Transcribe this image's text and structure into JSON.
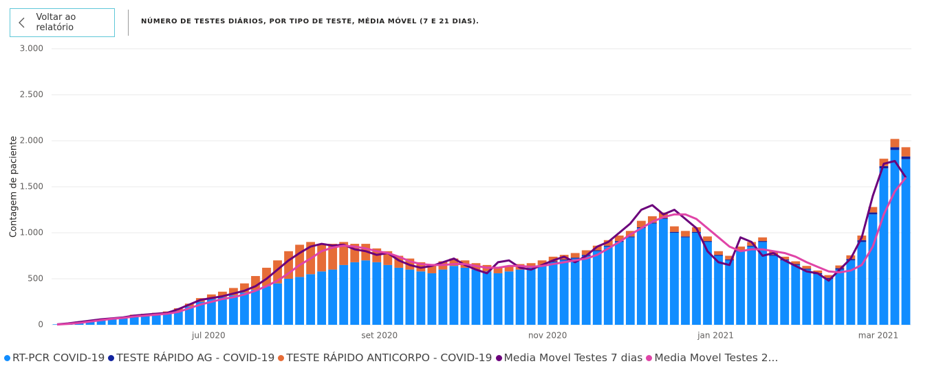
{
  "header": {
    "back_button": "Voltar ao relatório"
  },
  "chart_data": {
    "type": "bar",
    "title": "NÚMERO DE TESTES DIÁRIOS, POR TIPO DE TESTE, MÉDIA MÓVEL (7 E 21 DIAS).",
    "y_label": "Contagem de paciente",
    "categories": [
      null,
      null,
      null,
      null,
      null,
      null,
      null,
      null,
      null,
      null,
      null,
      null,
      null,
      null,
      null,
      null,
      null,
      null,
      null,
      null,
      null,
      null,
      null,
      null,
      null,
      null,
      null,
      null,
      null,
      null,
      null,
      null,
      null,
      null,
      null,
      null,
      null,
      null,
      null,
      null,
      null,
      null,
      null,
      null,
      null,
      null,
      null,
      null,
      null,
      null,
      null,
      null,
      null,
      null,
      null,
      null,
      null,
      null,
      null,
      null,
      null,
      null,
      null,
      null,
      null,
      null,
      null,
      null,
      null,
      null,
      null,
      null,
      null,
      null,
      null,
      null,
      null,
      null
    ],
    "xlim": [
      0,
      78
    ],
    "xticks": [
      {
        "value": 14.25,
        "label": "jul 2020"
      },
      {
        "value": 29.75,
        "label": "set 2020"
      },
      {
        "value": 45,
        "label": "nov 2020"
      },
      {
        "value": 60.25,
        "label": "jan 2021"
      },
      {
        "value": 75,
        "label": "mar 2021"
      }
    ],
    "ylim": [
      0,
      3000
    ],
    "yticks": [
      0,
      500,
      {
        "value": 1000,
        "label": "1.000"
      },
      {
        "value": 1500,
        "label": "1.500"
      },
      {
        "value": 2000,
        "label": "2.000"
      },
      {
        "value": 2500,
        "label": "2.500"
      },
      {
        "value": 3000,
        "label": "3.000"
      }
    ],
    "grid": true,
    "series": [
      {
        "name": "RT-PCR COVID-19",
        "color": "#118DFF",
        "kind": "bar",
        "values": [
          5,
          15,
          30,
          40,
          50,
          60,
          70,
          90,
          100,
          110,
          120,
          150,
          200,
          250,
          280,
          300,
          320,
          350,
          380,
          420,
          450,
          500,
          520,
          550,
          580,
          600,
          650,
          680,
          700,
          680,
          650,
          620,
          600,
          580,
          560,
          600,
          640,
          620,
          600,
          580,
          560,
          580,
          600,
          620,
          650,
          680,
          700,
          720,
          750,
          800,
          850,
          900,
          950,
          1050,
          1100,
          1150,
          1000,
          950,
          1000,
          900,
          750,
          700,
          800,
          850,
          900,
          750,
          700,
          650,
          600,
          550,
          500,
          600,
          700,
          900,
          1200,
          1700,
          1900,
          1800
        ]
      },
      {
        "name": "TESTE RÁPIDO AG - COVID-19",
        "color": "#12239E",
        "kind": "bar",
        "values": [
          0,
          0,
          0,
          0,
          0,
          0,
          0,
          0,
          0,
          0,
          0,
          0,
          0,
          0,
          0,
          0,
          0,
          0,
          0,
          0,
          0,
          0,
          0,
          0,
          0,
          0,
          0,
          0,
          0,
          0,
          0,
          0,
          0,
          0,
          0,
          0,
          0,
          0,
          0,
          0,
          0,
          0,
          0,
          0,
          0,
          10,
          10,
          10,
          10,
          10,
          10,
          10,
          10,
          10,
          10,
          10,
          10,
          10,
          10,
          10,
          10,
          10,
          10,
          10,
          10,
          10,
          10,
          10,
          10,
          10,
          10,
          15,
          15,
          20,
          20,
          25,
          30,
          30
        ]
      },
      {
        "name": "TESTE RÁPIDO ANTICORPO - COVID-19",
        "color": "#E66C37",
        "kind": "bar",
        "values": [
          0,
          2,
          5,
          5,
          10,
          10,
          15,
          20,
          20,
          20,
          25,
          30,
          30,
          40,
          50,
          60,
          80,
          100,
          150,
          200,
          250,
          300,
          350,
          350,
          300,
          280,
          250,
          200,
          180,
          150,
          150,
          130,
          120,
          100,
          100,
          90,
          80,
          80,
          70,
          70,
          60,
          60,
          60,
          50,
          50,
          50,
          50,
          50,
          50,
          50,
          60,
          60,
          60,
          70,
          70,
          60,
          60,
          60,
          50,
          50,
          40,
          40,
          40,
          40,
          40,
          40,
          30,
          30,
          30,
          30,
          30,
          30,
          40,
          50,
          60,
          80,
          90,
          100
        ]
      },
      {
        "name": "Media Movel Testes 7 dias",
        "color": "#6B007B",
        "kind": "line",
        "values": [
          5,
          15,
          30,
          45,
          60,
          70,
          80,
          100,
          110,
          120,
          130,
          170,
          220,
          270,
          290,
          310,
          340,
          370,
          420,
          500,
          600,
          700,
          780,
          850,
          880,
          860,
          870,
          820,
          800,
          760,
          780,
          700,
          650,
          620,
          640,
          680,
          720,
          650,
          600,
          560,
          680,
          700,
          620,
          600,
          650,
          700,
          740,
          680,
          750,
          850,
          900,
          1000,
          1100,
          1250,
          1300,
          1200,
          1250,
          1150,
          1050,
          800,
          680,
          650,
          950,
          900,
          750,
          780,
          700,
          640,
          580,
          560,
          480,
          600,
          720,
          950,
          1400,
          1750,
          1780,
          1600
        ]
      },
      {
        "name": "Media Movel Testes 2...",
        "color": "#E044A7",
        "kind": "line",
        "values": [
          3,
          10,
          20,
          35,
          50,
          65,
          75,
          90,
          100,
          110,
          120,
          140,
          180,
          220,
          250,
          280,
          300,
          330,
          370,
          420,
          480,
          560,
          650,
          720,
          800,
          840,
          860,
          850,
          830,
          800,
          780,
          740,
          690,
          660,
          650,
          650,
          660,
          660,
          640,
          620,
          620,
          640,
          640,
          630,
          640,
          660,
          680,
          700,
          720,
          760,
          830,
          900,
          980,
          1050,
          1120,
          1170,
          1200,
          1200,
          1150,
          1050,
          950,
          850,
          800,
          820,
          820,
          800,
          780,
          740,
          680,
          630,
          580,
          570,
          590,
          650,
          850,
          1200,
          1450,
          1600
        ]
      }
    ]
  }
}
